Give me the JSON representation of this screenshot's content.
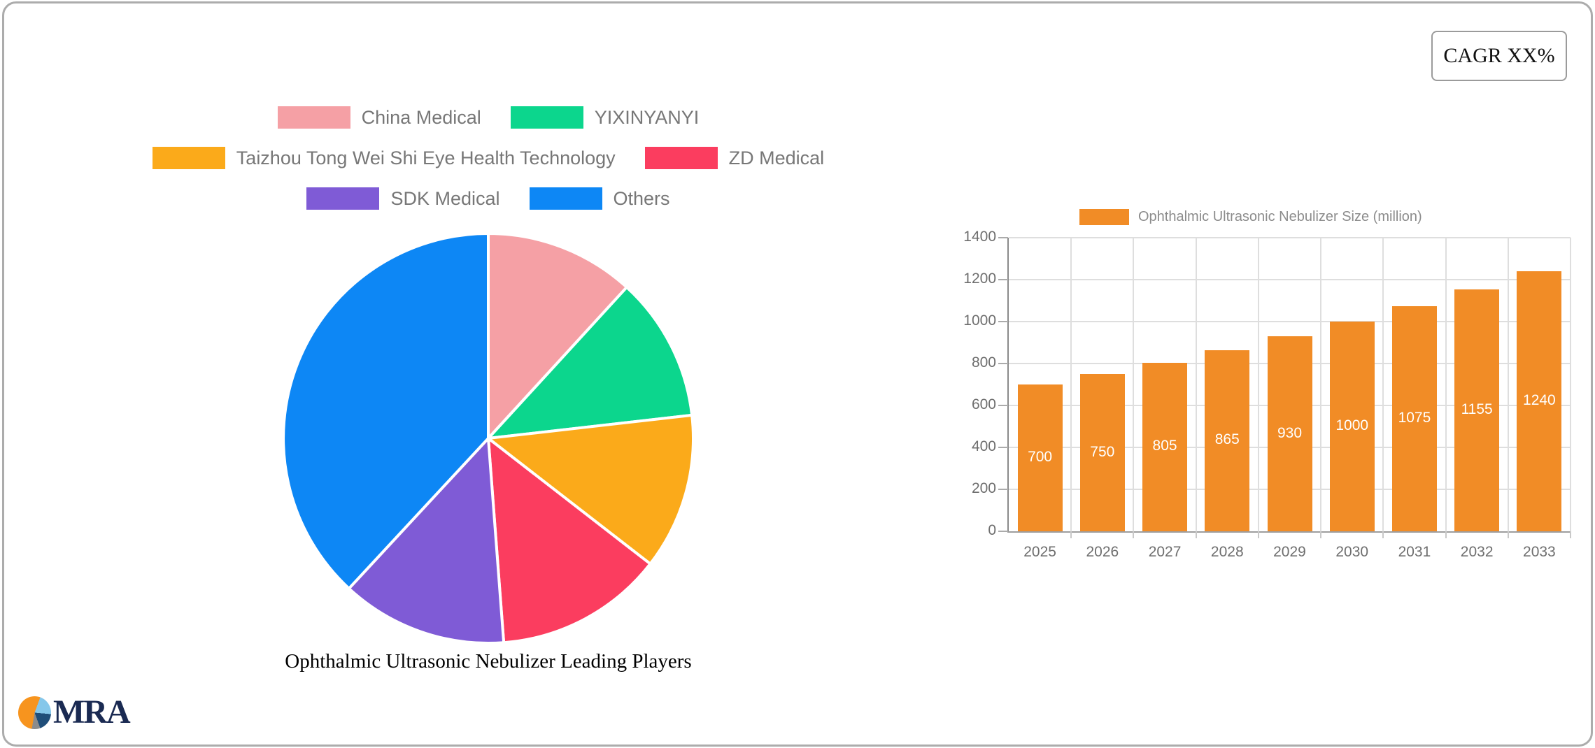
{
  "card": {
    "cagr_label": "CAGR XX%"
  },
  "logo": {
    "text": "MRA",
    "icon": "pie-chart-logo-icon",
    "icon_colors": {
      "orange": "#F7941E",
      "light_blue": "#85C7EA",
      "navy": "#1F4E79",
      "gray": "#8C8C8C"
    },
    "text_color": "#1A2A52"
  },
  "chart_data": [
    {
      "type": "pie",
      "title": "Ophthalmic Ultrasonic Nebulizer Leading Players",
      "legend_position": "top",
      "start_angle": "top",
      "direction": "clockwise",
      "values_estimated_from_angles": true,
      "series": [
        {
          "name": "China Medical",
          "value": 11.8,
          "color": "#F5A0A5"
        },
        {
          "name": "YIXINYANYI",
          "value": 11.4,
          "color": "#0CD68D"
        },
        {
          "name": "Taizhou Tong Wei Shi Eye Health Technology",
          "value": 12.3,
          "color": "#FBAA1A"
        },
        {
          "name": "ZD Medical",
          "value": 13.3,
          "color": "#FB3D5F"
        },
        {
          "name": "SDK Medical",
          "value": 13.1,
          "color": "#7F5BD6"
        },
        {
          "name": "Others",
          "value": 38.1,
          "color": "#0D87F5"
        }
      ]
    },
    {
      "type": "bar",
      "legend": "Ophthalmic Ultrasonic Nebulizer Size (million)",
      "categories": [
        "2025",
        "2026",
        "2027",
        "2028",
        "2029",
        "2030",
        "2031",
        "2032",
        "2033"
      ],
      "values": [
        700,
        750,
        805,
        865,
        930,
        1000,
        1075,
        1155,
        1240
      ],
      "bar_color": "#F18C26",
      "value_label_color": "#FFFFFF",
      "ylim": [
        0,
        1400
      ],
      "ytick_step": 200,
      "grid": true,
      "legend_position": "top"
    }
  ]
}
